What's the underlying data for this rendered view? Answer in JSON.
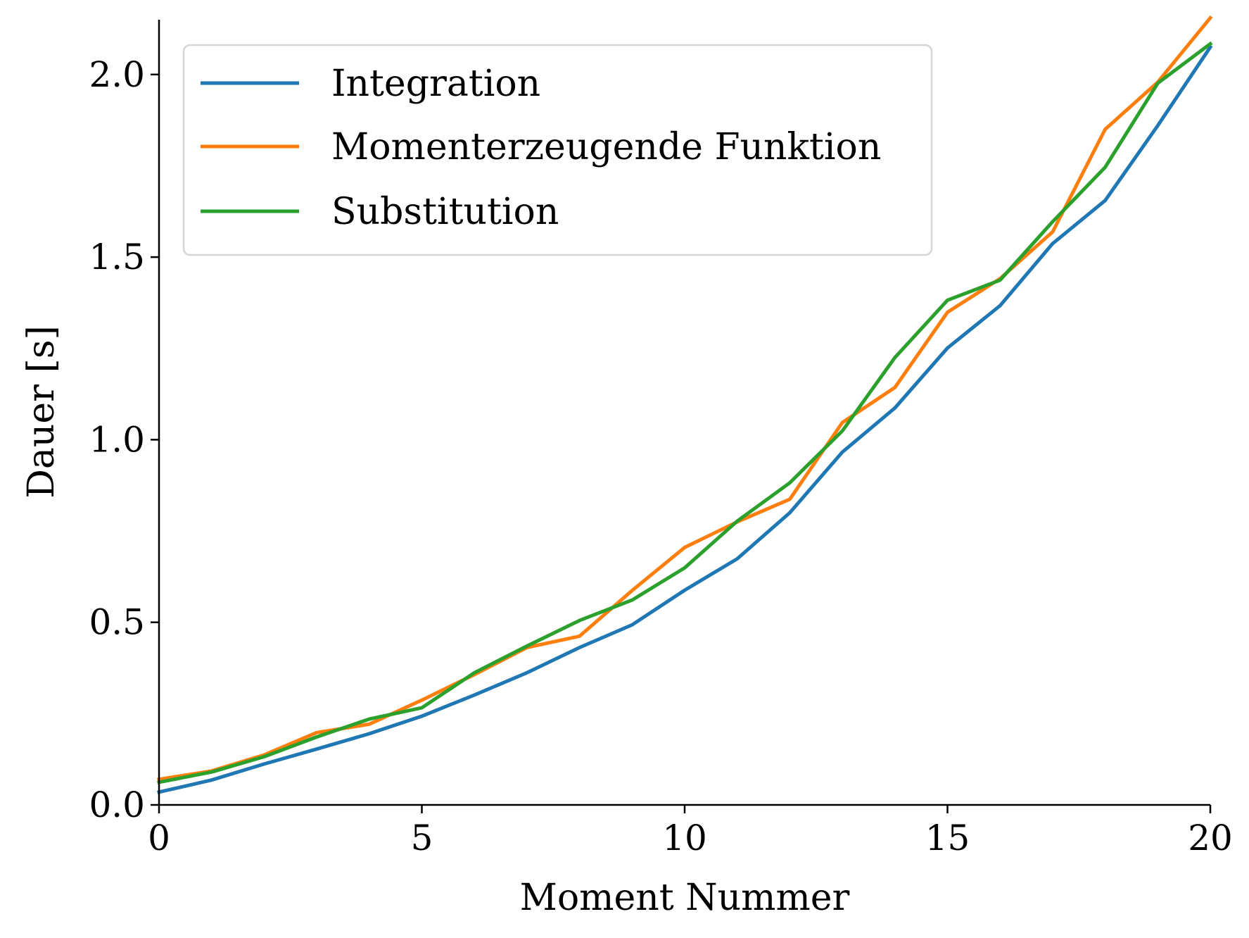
{
  "chart_data": {
    "type": "line",
    "xlabel": "Moment Nummer",
    "ylabel": "Dauer [s]",
    "xlim": [
      0,
      20
    ],
    "ylim": [
      0,
      2.15
    ],
    "xticks": [
      0,
      5,
      10,
      15,
      20
    ],
    "xtick_labels": [
      "0",
      "5",
      "10",
      "15",
      "20"
    ],
    "yticks": [
      0,
      0.5,
      1,
      1.5,
      2
    ],
    "ytick_labels": [
      "0.0",
      "0.5",
      "1.0",
      "1.5",
      "2.0"
    ],
    "grid": false,
    "legend_position": "top-left",
    "x": [
      0,
      1,
      2,
      3,
      4,
      5,
      6,
      7,
      8,
      9,
      10,
      11,
      12,
      13,
      14,
      15,
      16,
      17,
      18,
      19,
      20
    ],
    "series": [
      {
        "name": "Integration",
        "color": "#1f77b4",
        "values": [
          0.035,
          0.068,
          0.112,
          0.153,
          0.195,
          0.243,
          0.301,
          0.362,
          0.431,
          0.493,
          0.588,
          0.674,
          0.8,
          0.966,
          1.087,
          1.251,
          1.367,
          1.537,
          1.655,
          1.86,
          2.075
        ]
      },
      {
        "name": "Momenterzeugende Funktion",
        "color": "#ff7f0e",
        "values": [
          0.07,
          0.093,
          0.137,
          0.198,
          0.221,
          0.287,
          0.357,
          0.431,
          0.462,
          0.587,
          0.705,
          0.775,
          0.837,
          1.047,
          1.143,
          1.349,
          1.441,
          1.569,
          1.85,
          1.979,
          2.155
        ]
      },
      {
        "name": "Substitution",
        "color": "#2ca02c",
        "values": [
          0.062,
          0.09,
          0.132,
          0.186,
          0.235,
          0.266,
          0.362,
          0.435,
          0.505,
          0.561,
          0.649,
          0.777,
          0.882,
          1.024,
          1.225,
          1.382,
          1.437,
          1.597,
          1.746,
          1.976,
          2.084
        ]
      }
    ]
  }
}
